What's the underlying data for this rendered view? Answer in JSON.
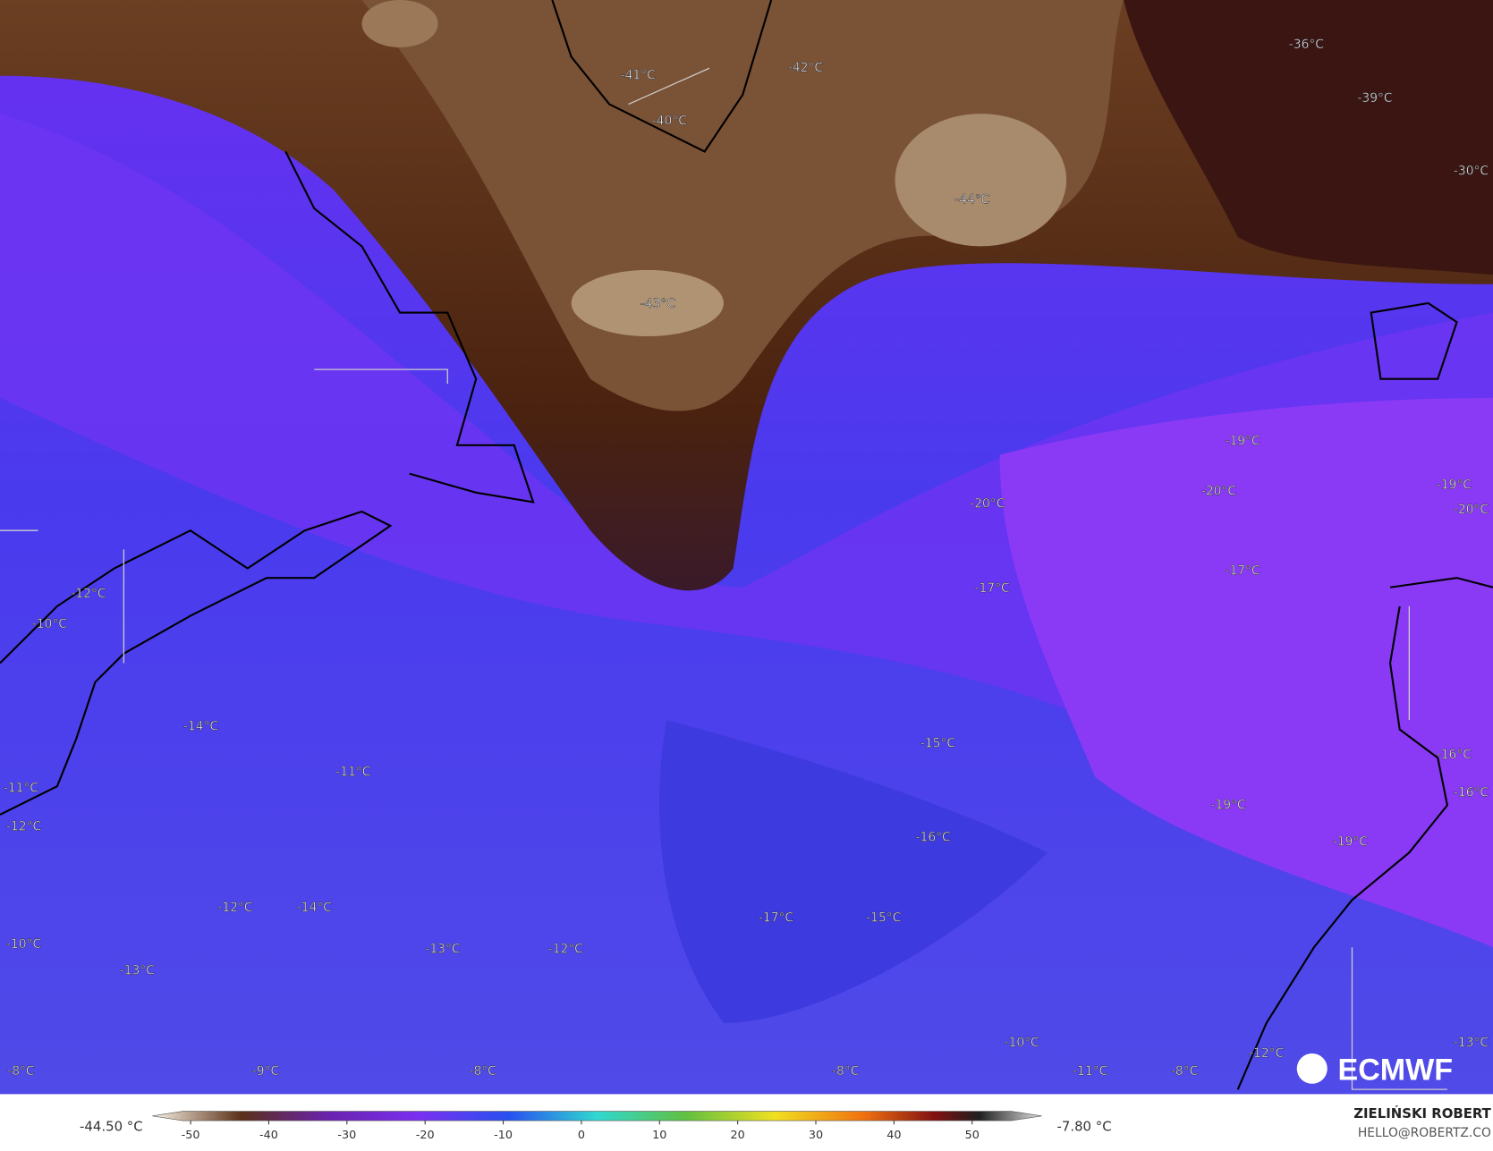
{
  "map": {
    "labels": [
      "-41°C",
      "-42°C",
      "-40°C",
      "-36°C",
      "-39°C",
      "-30°C",
      "-44°C",
      "-43°C",
      "-19°C",
      "-20°C",
      "-19°C",
      "-20°C",
      "-20°C",
      "-17°C",
      "-17°C",
      "-12°C",
      "-10°C",
      "-14°C",
      "-11°C",
      "-15°C",
      "-16°C",
      "-16°C",
      "-11°C",
      "-12°C",
      "-19°C",
      "-16°C",
      "-19°C",
      "-12°C",
      "-14°C",
      "-17°C",
      "-15°C",
      "-10°C",
      "-13°C",
      "-12°C",
      "-13°C",
      "-10°C",
      "-13°C",
      "-12°C",
      "-8°C",
      "-9°C",
      "-8°C",
      "-8°C",
      "-11°C",
      "-8°C"
    ],
    "logo": "ECMWF"
  },
  "colorbar": {
    "min_label": "-44.50 °C",
    "max_label": "-7.80 °C",
    "lim": [
      -51,
      55
    ],
    "ticks": [
      -50,
      -40,
      -30,
      -20,
      -10,
      0,
      10,
      20,
      30,
      40,
      50
    ]
  },
  "credit": {
    "name": "ZIELIŃSKI ROBERT",
    "contact": "HELLO@ROBERTZ.CO"
  }
}
